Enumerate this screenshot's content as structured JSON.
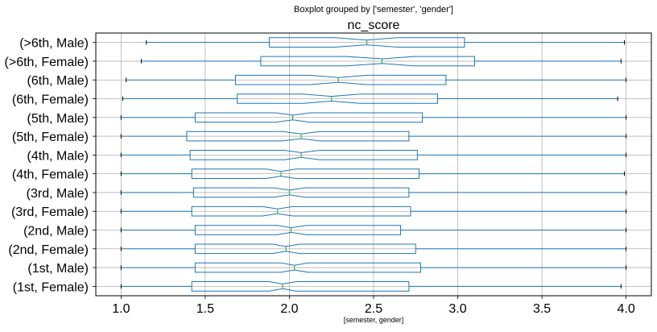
{
  "figure": {
    "suptitle": "Boxplot grouped by ['semester', 'gender']",
    "title": "nc_score",
    "xlabel": "[semester, gender]"
  },
  "colors": {
    "box": "#1f77b4",
    "median": "#2ca02c",
    "whisker": "#1f77b4",
    "cap": "#000000",
    "grid": "#b0b0b0",
    "spine": "#000000"
  },
  "chart_data": {
    "type": "boxplot",
    "orientation": "horizontal",
    "notched": true,
    "grid": true,
    "xlim": [
      0.85,
      4.15
    ],
    "xticks": [
      1.0,
      1.5,
      2.0,
      2.5,
      3.0,
      3.5,
      4.0
    ],
    "xtick_labels": [
      "1.0",
      "1.5",
      "2.0",
      "2.5",
      "3.0",
      "3.5",
      "4.0"
    ],
    "categories": [
      "(>6th, Male)",
      "(>6th, Female)",
      "(6th, Male)",
      "(6th, Female)",
      "(5th, Male)",
      "(5th, Female)",
      "(4th, Male)",
      "(4th, Female)",
      "(3rd, Male)",
      "(3rd, Female)",
      "(2nd, Male)",
      "(2nd, Female)",
      "(1st, Male)",
      "(1st, Female)"
    ],
    "boxes": [
      {
        "min": 1.15,
        "q1": 1.88,
        "median": 2.46,
        "q3": 3.04,
        "max": 3.99,
        "notch_lo": 2.27,
        "notch_hi": 2.64
      },
      {
        "min": 1.12,
        "q1": 1.83,
        "median": 2.55,
        "q3": 3.1,
        "max": 3.97,
        "notch_lo": 2.34,
        "notch_hi": 2.74
      },
      {
        "min": 1.03,
        "q1": 1.68,
        "median": 2.29,
        "q3": 2.93,
        "max": 4.0,
        "notch_lo": 2.12,
        "notch_hi": 2.46
      },
      {
        "min": 1.01,
        "q1": 1.69,
        "median": 2.25,
        "q3": 2.88,
        "max": 3.95,
        "notch_lo": 2.08,
        "notch_hi": 2.42
      },
      {
        "min": 1.0,
        "q1": 1.44,
        "median": 2.02,
        "q3": 2.79,
        "max": 4.0,
        "notch_lo": 1.92,
        "notch_hi": 2.12
      },
      {
        "min": 1.0,
        "q1": 1.39,
        "median": 2.07,
        "q3": 2.71,
        "max": 4.0,
        "notch_lo": 1.96,
        "notch_hi": 2.18
      },
      {
        "min": 1.0,
        "q1": 1.41,
        "median": 2.07,
        "q3": 2.76,
        "max": 4.0,
        "notch_lo": 1.97,
        "notch_hi": 2.18
      },
      {
        "min": 1.0,
        "q1": 1.42,
        "median": 1.95,
        "q3": 2.77,
        "max": 3.99,
        "notch_lo": 1.86,
        "notch_hi": 2.04
      },
      {
        "min": 1.0,
        "q1": 1.43,
        "median": 2.0,
        "q3": 2.71,
        "max": 4.0,
        "notch_lo": 1.91,
        "notch_hi": 2.09
      },
      {
        "min": 1.0,
        "q1": 1.42,
        "median": 1.93,
        "q3": 2.72,
        "max": 4.0,
        "notch_lo": 1.84,
        "notch_hi": 2.02
      },
      {
        "min": 1.0,
        "q1": 1.44,
        "median": 2.01,
        "q3": 2.66,
        "max": 4.0,
        "notch_lo": 1.93,
        "notch_hi": 2.1
      },
      {
        "min": 1.0,
        "q1": 1.44,
        "median": 1.98,
        "q3": 2.75,
        "max": 4.0,
        "notch_lo": 1.9,
        "notch_hi": 2.06
      },
      {
        "min": 1.0,
        "q1": 1.44,
        "median": 2.03,
        "q3": 2.78,
        "max": 4.0,
        "notch_lo": 1.95,
        "notch_hi": 2.11
      },
      {
        "min": 1.0,
        "q1": 1.42,
        "median": 1.96,
        "q3": 2.71,
        "max": 3.97,
        "notch_lo": 1.88,
        "notch_hi": 2.04
      }
    ]
  }
}
